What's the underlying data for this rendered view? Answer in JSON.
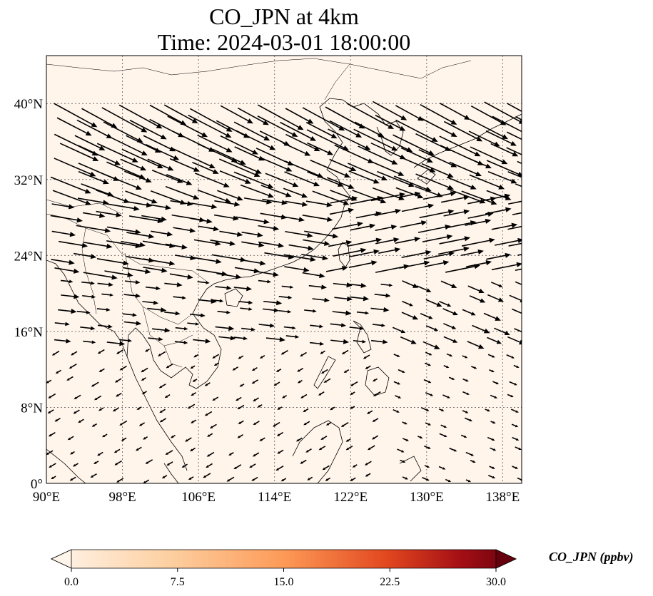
{
  "title": {
    "line1": "CO_JPN at 4km",
    "line2": "Time: 2024-03-01 18:00:00"
  },
  "map": {
    "lon_range": [
      90,
      140
    ],
    "lat_range": [
      0,
      40
    ],
    "lon_ticks": [
      "90°E",
      "98°E",
      "106°E",
      "114°E",
      "122°E",
      "130°E",
      "138°E"
    ],
    "lat_ticks": [
      "0°",
      "8°N",
      "16°N",
      "24°N",
      "32°N",
      "40°N"
    ],
    "background_color": "#fff5eb",
    "gridlines": true
  },
  "colorbar": {
    "label": "CO_JPN (ppbv)",
    "ticks": [
      "0.0",
      "7.5",
      "15.0",
      "22.5",
      "30.0"
    ],
    "range": [
      0,
      30
    ],
    "colormap": [
      "#fff5eb",
      "#fdd0a2",
      "#fd8d3c",
      "#d94801",
      "#a50f15",
      "#67000d"
    ]
  }
}
